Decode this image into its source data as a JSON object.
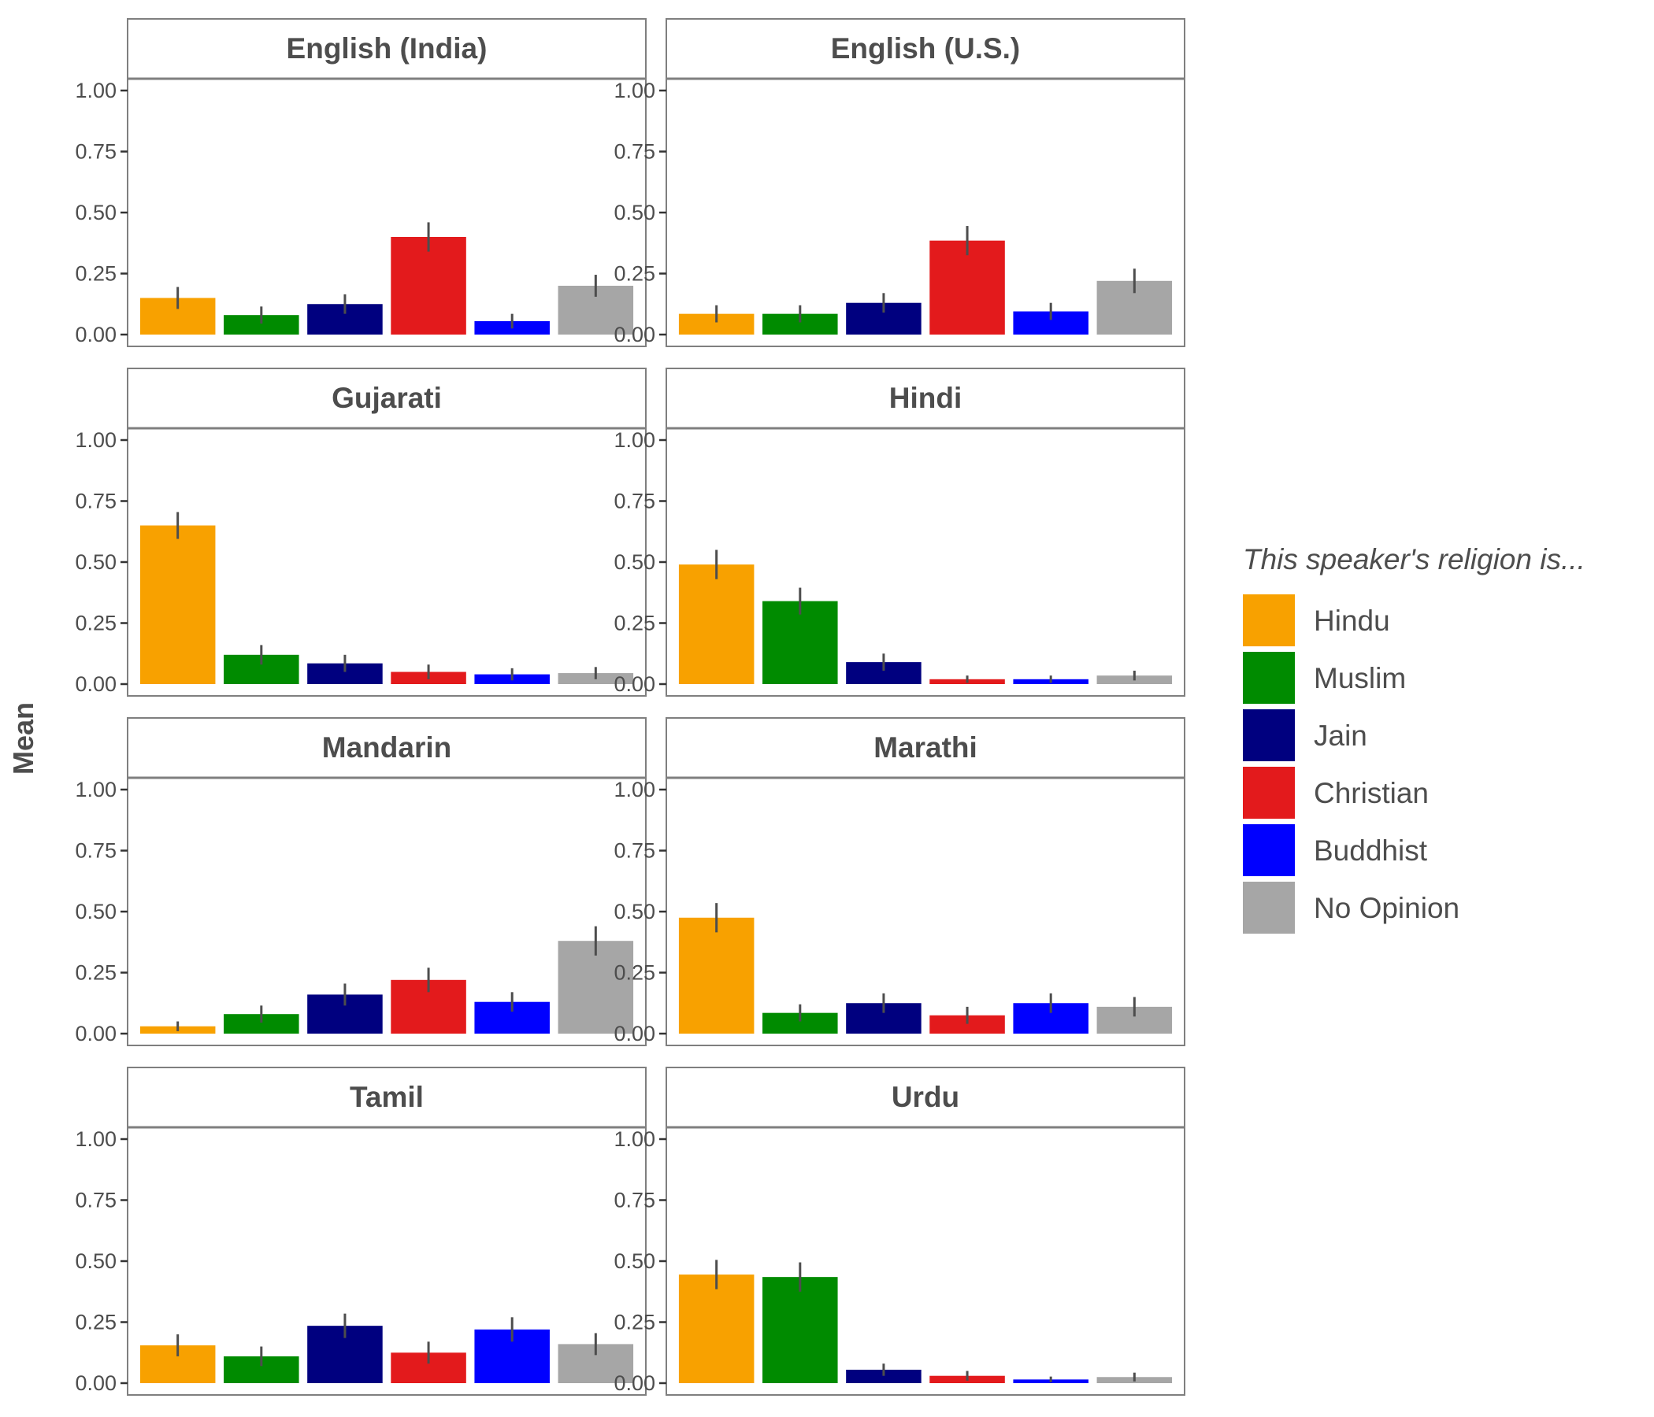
{
  "chart_data": {
    "type": "bar",
    "ylabel": "Mean",
    "ylim": [
      0,
      1
    ],
    "yticks": [
      "0.00",
      "0.25",
      "0.50",
      "0.75",
      "1.00"
    ],
    "grid": false,
    "legend": {
      "title": "This speaker's religion is...",
      "placement": "right"
    },
    "categories": [
      "Hindu",
      "Muslim",
      "Jain",
      "Christian",
      "Buddhist",
      "No Opinion"
    ],
    "colors": [
      "#f8a100",
      "#008b00",
      "#00007f",
      "#e31a1c",
      "#0000ff",
      "#a6a6a6"
    ],
    "error_bar_color": "#4d4d4d",
    "panels": [
      {
        "name": "English (India)",
        "values": [
          0.15,
          0.08,
          0.125,
          0.4,
          0.055,
          0.2
        ],
        "errors": [
          0.045,
          0.035,
          0.04,
          0.06,
          0.03,
          0.045
        ]
      },
      {
        "name": "English (U.S.)",
        "values": [
          0.085,
          0.085,
          0.13,
          0.385,
          0.095,
          0.22
        ],
        "errors": [
          0.035,
          0.035,
          0.04,
          0.06,
          0.035,
          0.05
        ]
      },
      {
        "name": "Gujarati",
        "values": [
          0.65,
          0.12,
          0.085,
          0.05,
          0.04,
          0.045
        ],
        "errors": [
          0.055,
          0.04,
          0.035,
          0.03,
          0.025,
          0.025
        ]
      },
      {
        "name": "Hindi",
        "values": [
          0.49,
          0.34,
          0.09,
          0.02,
          0.02,
          0.035
        ],
        "errors": [
          0.06,
          0.055,
          0.035,
          0.015,
          0.015,
          0.02
        ]
      },
      {
        "name": "Mandarin",
        "values": [
          0.03,
          0.08,
          0.16,
          0.22,
          0.13,
          0.38
        ],
        "errors": [
          0.02,
          0.035,
          0.045,
          0.05,
          0.04,
          0.06
        ]
      },
      {
        "name": "Marathi",
        "values": [
          0.475,
          0.085,
          0.125,
          0.075,
          0.125,
          0.11
        ],
        "errors": [
          0.06,
          0.035,
          0.04,
          0.035,
          0.04,
          0.04
        ]
      },
      {
        "name": "Tamil",
        "values": [
          0.155,
          0.11,
          0.235,
          0.125,
          0.22,
          0.16
        ],
        "errors": [
          0.045,
          0.04,
          0.05,
          0.045,
          0.05,
          0.045
        ]
      },
      {
        "name": "Urdu",
        "values": [
          0.445,
          0.435,
          0.055,
          0.03,
          0.015,
          0.025
        ],
        "errors": [
          0.06,
          0.06,
          0.025,
          0.02,
          0.012,
          0.018
        ]
      }
    ]
  }
}
